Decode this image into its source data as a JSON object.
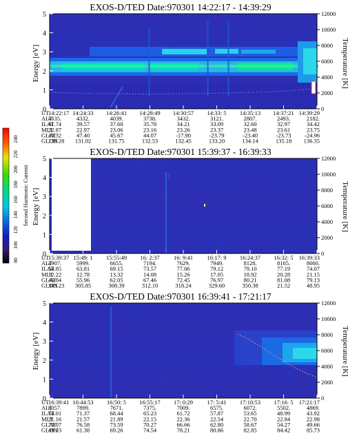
{
  "chart_data": [
    {
      "type": "heatmap",
      "title": "EXOS-D/TED   Date:970301   14:22:17 - 14:39:29",
      "ylabel": "Energy [eV]",
      "y2label": "Temperature [K]",
      "ylim": [
        0,
        5
      ],
      "yticks": [
        "0",
        "1",
        "2",
        "3",
        "4",
        "5"
      ],
      "y2lim": [
        0,
        12000
      ],
      "y2ticks": [
        "0",
        "2000",
        "4000",
        "6000",
        "8000",
        "10000",
        "12000"
      ],
      "grid": false,
      "row_labels": [
        "UT",
        "ALT",
        "ILAT",
        "MLT",
        "GLAT",
        "GLON"
      ],
      "columns": [
        [
          "14:22:17",
          "4635.",
          "41.74",
          "22.87",
          "49.32",
          "130.28"
        ],
        [
          "14:24:33",
          "4332.",
          "39.57",
          "22.97",
          "47.40",
          "131.02"
        ],
        [
          "14:26:41",
          "4039.",
          "37.60",
          "23.06",
          "45.67",
          "131.75"
        ],
        [
          "14:28:49",
          "3738.",
          "35.78",
          "23.16",
          "44.07",
          "132.53"
        ],
        [
          "14:30:57",
          "3432.",
          "34.21",
          "23.26",
          "-17.90",
          "132.45"
        ],
        [
          "14:33: 5",
          "3121.",
          "33.09",
          "23.37",
          "-23.79",
          "133.20"
        ],
        [
          "14:35:13",
          "2807.",
          "32.60",
          "23.48",
          "-23.40",
          "134.14"
        ],
        [
          "14:37:21",
          "2493.",
          "32.97",
          "23.61",
          "-23.73",
          "135.18"
        ],
        [
          "14:39:29",
          "2182.",
          "34.42",
          "23.75",
          "-24.96",
          "136.35"
        ]
      ]
    },
    {
      "type": "heatmap",
      "title": "EXOS-D/TED   Date:970301   15:39:37 - 16:39:33",
      "ylabel": "Energy [eV]",
      "y2label": "Temperature [K]",
      "ylim": [
        0,
        5
      ],
      "yticks": [
        "0",
        "1",
        "2",
        "3",
        "4",
        "5"
      ],
      "y2lim": [
        0,
        12000
      ],
      "y2ticks": [
        "0",
        "2000",
        "4000",
        "6000",
        "8000",
        "10000",
        "12000"
      ],
      "grid": false,
      "row_labels": [
        "UT",
        "ALT",
        "ILAT",
        "MLT",
        "GLAT",
        "GLON"
      ],
      "columns": [
        [
          "15:39:37",
          "4907.",
          "54.85",
          "12.22",
          "46.04",
          "303.23"
        ],
        [
          "15:49: 1",
          "5999.",
          "63.81",
          "12.78",
          "55.96",
          "305.85"
        ],
        [
          "15:55:49",
          "6655.",
          "69.15",
          "13.32",
          "62.05",
          "308.39"
        ],
        [
          "16: 2:37",
          "7194.",
          "73.57",
          "14.08",
          "67.46",
          "312.10"
        ],
        [
          "16: 9:41",
          "7629.",
          "77.06",
          "15.26",
          "72.45",
          "318.24"
        ],
        [
          "16:17: 9",
          "7949.",
          "79.12",
          "17.05",
          "76.97",
          "329.60"
        ],
        [
          "16:24:37",
          "8128.",
          "79.10",
          "18.92",
          "80.21",
          "350.38"
        ],
        [
          "16:32: 5",
          "8165.",
          "77.19",
          "20.28",
          "81.08",
          "21.52"
        ],
        [
          "16:39:33",
          "8060.",
          "74.07",
          "21.15",
          "79.13",
          "48.95"
        ]
      ]
    },
    {
      "type": "heatmap",
      "title": "EXOS-D/TED   Date:970301   16:39:41 - 17:21:17",
      "ylabel": "Energy [eV]",
      "y2label": "Temperature [K]",
      "ylim": [
        0,
        5
      ],
      "yticks": [
        "0",
        "1",
        "2",
        "3",
        "4",
        "5"
      ],
      "y2lim": [
        0,
        12000
      ],
      "y2ticks": [
        "0",
        "2000",
        "4000",
        "6000",
        "8000",
        "10000",
        "12000"
      ],
      "grid": false,
      "row_labels": [
        "UT",
        "ALT",
        "ILAT",
        "MLT",
        "GLAT",
        "GLON"
      ],
      "columns": [
        [
          "16:39:41",
          "8057.",
          "74.01",
          "21.16",
          "79.07",
          "49.33"
        ],
        [
          "16:44:53",
          "7899.",
          "71.37",
          "21.57",
          "76.58",
          "61.38"
        ],
        [
          "16:50: 5",
          "7671.",
          "68.44",
          "21.89",
          "73.59",
          "69.26"
        ],
        [
          "16:55:17",
          "7375.",
          "65.23",
          "22.15",
          "70.27",
          "74.54"
        ],
        [
          "17: 0:29",
          "7009.",
          "61.72",
          "22.36",
          "66.66",
          "78.21"
        ],
        [
          "17: 5:41",
          "6575.",
          "57.87",
          "22.54",
          "62.80",
          "80.86"
        ],
        [
          "17:10:53",
          "6072.",
          "53.65",
          "22.70",
          "58.67",
          "82.85"
        ],
        [
          "17:16: 5",
          "5502.",
          "48.99",
          "22.84",
          "54.27",
          "84.42"
        ],
        [
          "17:21:17",
          "4869.",
          "43.92",
          "22.98",
          "49.66",
          "85.73"
        ]
      ]
    }
  ],
  "colorbar": {
    "label": "Second Harmonic Current",
    "ticks": [
      "80",
      "100",
      "120",
      "140",
      "160",
      "180",
      "200",
      "220",
      "240"
    ],
    "colors": [
      "#000000",
      "#3a1a70",
      "#0a1fc8",
      "#0a64e6",
      "#00c8e6",
      "#00dc78",
      "#3cdc00",
      "#e6e600",
      "#ff6400",
      "#ff0000"
    ]
  }
}
